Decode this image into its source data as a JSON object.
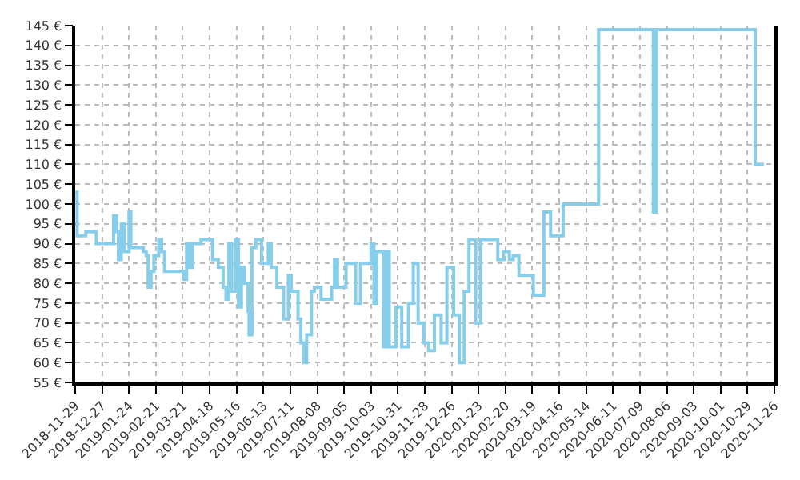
{
  "chart_data": {
    "type": "step",
    "color": "#87ceeb",
    "grid": true,
    "line_style": "solid",
    "marker": "none",
    "x": [
      "2018-11-29",
      "2018-12-01",
      "2018-12-10",
      "2018-12-21",
      "2019-01-08",
      "2019-01-11",
      "2019-01-13",
      "2019-01-16",
      "2019-01-19",
      "2019-01-24",
      "2019-01-26",
      "2019-02-08",
      "2019-02-11",
      "2019-02-13",
      "2019-02-16",
      "2019-02-19",
      "2019-02-24",
      "2019-02-27",
      "2019-03-02",
      "2019-03-22",
      "2019-03-25",
      "2019-03-28",
      "2019-03-31",
      "2019-04-09",
      "2019-04-21",
      "2019-04-27",
      "2019-05-02",
      "2019-05-05",
      "2019-05-08",
      "2019-05-11",
      "2019-05-15",
      "2019-05-18",
      "2019-05-21",
      "2019-05-24",
      "2019-05-28",
      "2019-05-29",
      "2019-06-01",
      "2019-06-05",
      "2019-06-11",
      "2019-06-18",
      "2019-06-21",
      "2019-06-27",
      "2019-07-04",
      "2019-07-09",
      "2019-07-12",
      "2019-07-19",
      "2019-07-22",
      "2019-07-25",
      "2019-07-28",
      "2019-08-02",
      "2019-08-05",
      "2019-08-12",
      "2019-08-23",
      "2019-08-26",
      "2019-08-29",
      "2019-09-07",
      "2019-09-17",
      "2019-09-22",
      "2019-10-03",
      "2019-10-06",
      "2019-10-09",
      "2019-10-16",
      "2019-10-19",
      "2019-10-22",
      "2019-10-29",
      "2019-11-04",
      "2019-11-11",
      "2019-11-16",
      "2019-11-21",
      "2019-11-27",
      "2019-12-02",
      "2019-12-08",
      "2019-12-15",
      "2019-12-21",
      "2019-12-28",
      "2020-01-03",
      "2020-01-08",
      "2020-01-13",
      "2020-01-20",
      "2020-01-25",
      "2020-02-05",
      "2020-02-12",
      "2020-02-18",
      "2020-02-24",
      "2020-02-28",
      "2020-03-05",
      "2020-03-20",
      "2020-03-31",
      "2020-04-07",
      "2020-04-20",
      "2020-05-27",
      "2020-07-23",
      "2020-07-26",
      "2020-11-06",
      "2020-11-15"
    ],
    "values": [
      103,
      92,
      93,
      90,
      97,
      93,
      86,
      95,
      88,
      98,
      89,
      88,
      87,
      79,
      83,
      87,
      91,
      88,
      83,
      81,
      90,
      84,
      90,
      91,
      86,
      84,
      79,
      76,
      90,
      78,
      91,
      74,
      84,
      80,
      73,
      67,
      89,
      91,
      85,
      90,
      84,
      79,
      71,
      82,
      78,
      71,
      65,
      60,
      67,
      78,
      79,
      76,
      79,
      86,
      79,
      85,
      75,
      85,
      90,
      75,
      88,
      64,
      88,
      64,
      74,
      64,
      75,
      85,
      70,
      65,
      63,
      72,
      65,
      84,
      72,
      60,
      78,
      91,
      70,
      91,
      91,
      86,
      88,
      86,
      87,
      82,
      77,
      98,
      92,
      100,
      144,
      98,
      144,
      110,
      110
    ],
    "xlim": [
      "2018-11-29",
      "2020-11-26"
    ],
    "xticks": [
      {
        "value": "2018-11-29",
        "label": "2018-11-29"
      },
      {
        "value": "2018-12-27",
        "label": "2018-12-27"
      },
      {
        "value": "2019-01-24",
        "label": "2019-01-24"
      },
      {
        "value": "2019-02-21",
        "label": "2019-02-21"
      },
      {
        "value": "2019-03-21",
        "label": "2019-03-21"
      },
      {
        "value": "2019-04-18",
        "label": "2019-04-18"
      },
      {
        "value": "2019-05-16",
        "label": "2019-05-16"
      },
      {
        "value": "2019-06-13",
        "label": "2019-06-13"
      },
      {
        "value": "2019-07-11",
        "label": "2019-07-11"
      },
      {
        "value": "2019-08-08",
        "label": "2019-08-08"
      },
      {
        "value": "2019-09-05",
        "label": "2019-09-05"
      },
      {
        "value": "2019-10-03",
        "label": "2019-10-03"
      },
      {
        "value": "2019-10-31",
        "label": "2019-10-31"
      },
      {
        "value": "2019-11-28",
        "label": "2019-11-28"
      },
      {
        "value": "2019-12-26",
        "label": "2019-12-26"
      },
      {
        "value": "2020-01-23",
        "label": "2020-01-23"
      },
      {
        "value": "2020-02-20",
        "label": "2020-02-20"
      },
      {
        "value": "2020-03-19",
        "label": "2020-03-19"
      },
      {
        "value": "2020-04-16",
        "label": "2020-04-16"
      },
      {
        "value": "2020-05-14",
        "label": "2020-05-14"
      },
      {
        "value": "2020-06-11",
        "label": "2020-06-11"
      },
      {
        "value": "2020-07-09",
        "label": "2020-07-09"
      },
      {
        "value": "2020-08-06",
        "label": "2020-08-06"
      },
      {
        "value": "2020-09-03",
        "label": "2020-09-03"
      },
      {
        "value": "2020-10-01",
        "label": "2020-10-01"
      },
      {
        "value": "2020-10-29",
        "label": "2020-10-29"
      },
      {
        "value": "2020-11-26",
        "label": "2020-11-26"
      }
    ],
    "ylim": [
      55,
      145
    ],
    "yticks": [
      {
        "value": 55,
        "label": "55 €"
      },
      {
        "value": 60,
        "label": "60 €"
      },
      {
        "value": 65,
        "label": "65 €"
      },
      {
        "value": 70,
        "label": "70 €"
      },
      {
        "value": 75,
        "label": "75 €"
      },
      {
        "value": 80,
        "label": "80 €"
      },
      {
        "value": 85,
        "label": "85 €"
      },
      {
        "value": 90,
        "label": "90 €"
      },
      {
        "value": 95,
        "label": "95 €"
      },
      {
        "value": 100,
        "label": "100 €"
      },
      {
        "value": 105,
        "label": "105 €"
      },
      {
        "value": 110,
        "label": "110 €"
      },
      {
        "value": 115,
        "label": "115 €"
      },
      {
        "value": 120,
        "label": "120 €"
      },
      {
        "value": 125,
        "label": "125 €"
      },
      {
        "value": 130,
        "label": "130 €"
      },
      {
        "value": 135,
        "label": "135 €"
      },
      {
        "value": 140,
        "label": "140 €"
      },
      {
        "value": 145,
        "label": "145 €"
      }
    ]
  }
}
